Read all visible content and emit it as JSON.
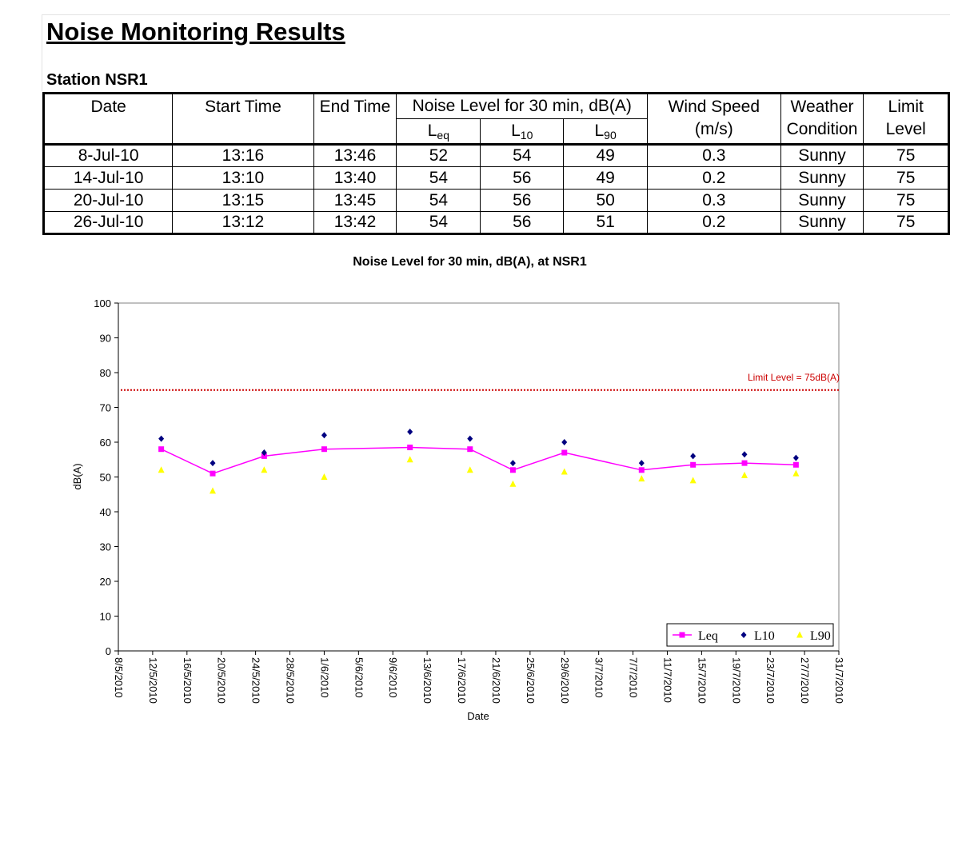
{
  "page": {
    "title": "Noise Monitoring Results",
    "station": "Station NSR1"
  },
  "table": {
    "headers": {
      "date": "Date",
      "start_time": "Start Time",
      "end_time": "End Time",
      "noise_level": "Noise Level for 30 min, dB(A)",
      "leq_main": "L",
      "leq_sub": "eq",
      "l10_main": "L",
      "l10_sub": "10",
      "l90_main": "L",
      "l90_sub": "90",
      "wind_speed_1": "Wind Speed",
      "wind_speed_2": "(m/s)",
      "weather_1": "Weather",
      "weather_2": "Condition",
      "limit_1": "Limit",
      "limit_2": "Level"
    },
    "rows": [
      {
        "date": "8-Jul-10",
        "start": "13:16",
        "end": "13:46",
        "leq": "52",
        "l10": "54",
        "l90": "49",
        "wind": "0.3",
        "weather": "Sunny",
        "limit": "75"
      },
      {
        "date": "14-Jul-10",
        "start": "13:10",
        "end": "13:40",
        "leq": "54",
        "l10": "56",
        "l90": "49",
        "wind": "0.2",
        "weather": "Sunny",
        "limit": "75"
      },
      {
        "date": "20-Jul-10",
        "start": "13:15",
        "end": "13:45",
        "leq": "54",
        "l10": "56",
        "l90": "50",
        "wind": "0.3",
        "weather": "Sunny",
        "limit": "75"
      },
      {
        "date": "26-Jul-10",
        "start": "13:12",
        "end": "13:42",
        "leq": "54",
        "l10": "56",
        "l90": "51",
        "wind": "0.2",
        "weather": "Sunny",
        "limit": "75"
      }
    ]
  },
  "chart_data": {
    "type": "line",
    "title": "Noise Level for 30 min, dB(A), at NSR1",
    "xlabel": "Date",
    "ylabel": "dB(A)",
    "ylim": [
      0,
      100
    ],
    "yticks": [
      0,
      10,
      20,
      30,
      40,
      50,
      60,
      70,
      80,
      90,
      100
    ],
    "xlim": [
      "2010-05-08",
      "2010-07-31"
    ],
    "xtick_labels": [
      "8/5/2010",
      "12/5/2010",
      "16/5/2010",
      "20/5/2010",
      "24/5/2010",
      "28/5/2010",
      "1/6/2010",
      "5/6/2010",
      "9/6/2010",
      "13/6/2010",
      "17/6/2010",
      "21/6/2010",
      "25/6/2010",
      "29/6/2010",
      "3/7/2010",
      "7/7/2010",
      "11/7/2010",
      "15/7/2010",
      "19/7/2010",
      "23/7/2010",
      "27/7/2010",
      "31/7/2010"
    ],
    "dates": [
      "2010-05-13",
      "2010-05-19",
      "2010-05-25",
      "2010-06-01",
      "2010-06-11",
      "2010-06-18",
      "2010-06-23",
      "2010-06-29",
      "2010-07-08",
      "2010-07-14",
      "2010-07-20",
      "2010-07-26"
    ],
    "series": [
      {
        "name": "Leq",
        "style": "line-square",
        "color": "#ff00ff",
        "values": [
          58,
          51,
          56,
          58,
          58.5,
          58,
          52,
          57,
          52,
          53.5,
          54,
          53.5
        ]
      },
      {
        "name": "L10",
        "style": "diamond",
        "color": "#000080",
        "values": [
          61,
          54,
          57,
          62,
          63,
          61,
          54,
          60,
          54,
          56,
          56.5,
          55.5
        ]
      },
      {
        "name": "L90",
        "style": "triangle",
        "color": "#ffff00",
        "values": [
          52,
          46,
          52,
          50,
          55,
          52,
          48,
          51.5,
          49.5,
          49,
          50.5,
          51
        ]
      }
    ],
    "limit": {
      "value": 75,
      "label": "Limit Level = 75dB(A)",
      "color": "#cc0000"
    },
    "legend": {
      "placement": "bottom-right"
    },
    "grid": false
  }
}
